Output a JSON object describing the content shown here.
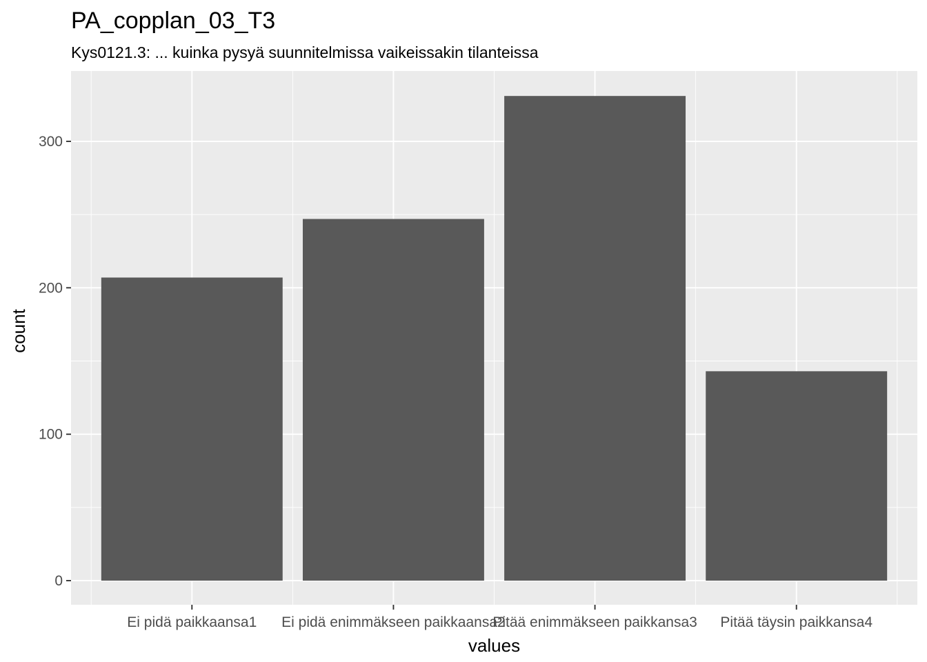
{
  "chart_data": {
    "type": "bar",
    "title": "PA_copplan_03_T3",
    "subtitle": "Kys0121.3: ... kuinka pysyä suunnitelmissa vaikeissakin tilanteissa",
    "xlabel": "values",
    "ylabel": "count",
    "categories": [
      "Ei pidä paikkaansa1",
      "Ei pidä enimmäkseen paikkaansa2",
      "Pitää enimmäkseen paikkansa3",
      "Pitää täysin paikkansa4"
    ],
    "values": [
      207,
      247,
      331,
      143
    ],
    "ylim": [
      0,
      345
    ],
    "yticks": [
      0,
      100,
      200,
      300
    ],
    "grid": true,
    "colors": {
      "panel": "#ebebeb",
      "grid": "#ffffff",
      "bar": "#595959",
      "tick": "#333333",
      "tick_label": "#4d4d4d"
    }
  }
}
